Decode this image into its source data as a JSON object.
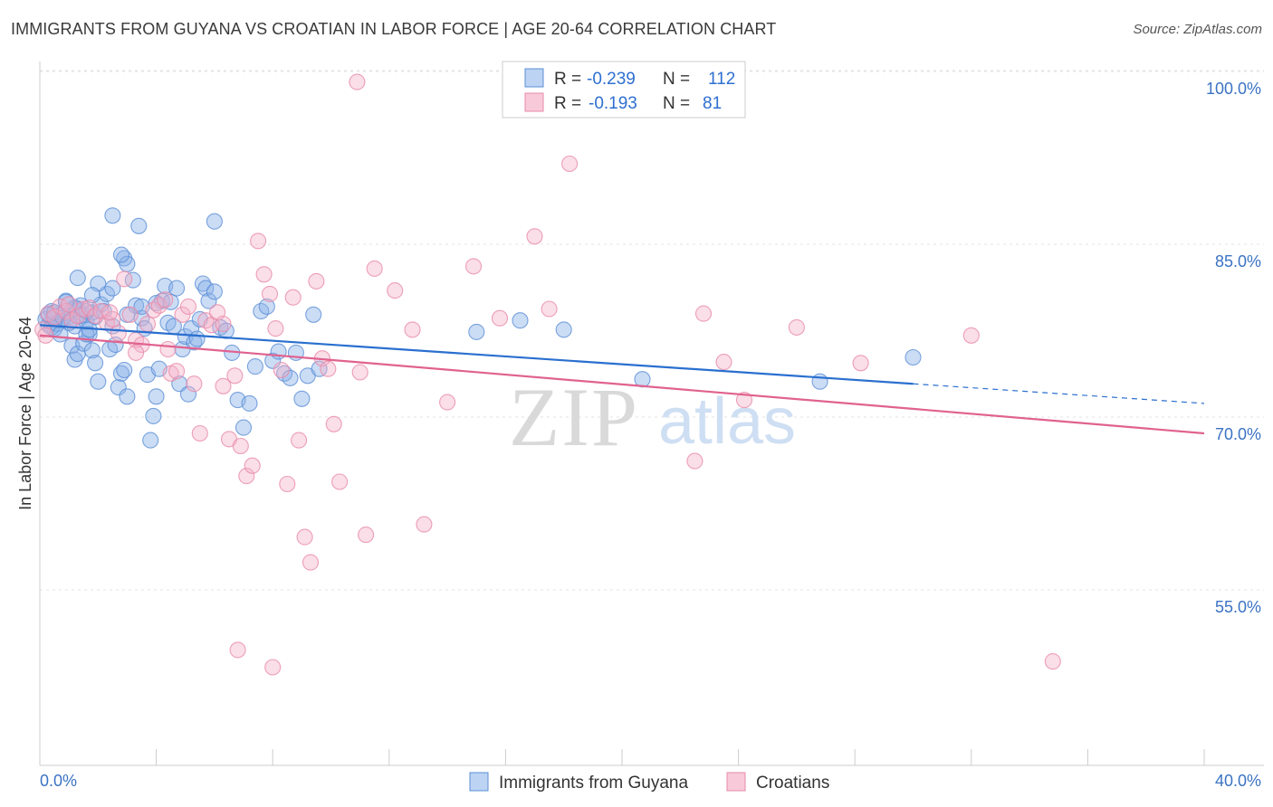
{
  "title": "IMMIGRANTS FROM GUYANA VS CROATIAN IN LABOR FORCE | AGE 20-64 CORRELATION CHART",
  "source": "Source: ZipAtlas.com",
  "watermark": {
    "zip": "ZIP",
    "atlas": "atlas"
  },
  "colors": {
    "blue": "#5b8fd6",
    "blue_line": "#2a6fcf",
    "pink": "#e98aa8",
    "pink_line": "#e0628f",
    "axis_text": "#3b73c4"
  },
  "legend": {
    "rows": [
      {
        "r_label": "R =",
        "r_value": "-0.239",
        "n_label": "N =",
        "n_value": "112"
      },
      {
        "r_label": "R =",
        "r_value": "-0.193",
        "n_label": "N =",
        "n_value": "81"
      }
    ]
  },
  "chart_data": {
    "type": "scatter",
    "title": "IMMIGRANTS FROM GUYANA VS CROATIAN IN LABOR FORCE | AGE 20-64 CORRELATION CHART",
    "xlabel": "",
    "ylabel": "In Labor Force | Age 20-64",
    "xlim": [
      0,
      40
    ],
    "ylim": [
      40,
      102
    ],
    "x_tick_labels": [
      "0.0%",
      "40.0%"
    ],
    "y_ticks": [
      100,
      85,
      70,
      55
    ],
    "y_tick_labels": [
      "100.0%",
      "85.0%",
      "70.0%",
      "55.0%"
    ],
    "grid": true,
    "legend_position": "top-center",
    "series": [
      {
        "name": "Immigrants from Guyana",
        "color": "#5b8fd6",
        "trend": {
          "x0": 0,
          "y0": 79.4,
          "x1": 30,
          "y1": 74.3,
          "x_dash_end": 40,
          "y_dash_end": 72.6
        },
        "points": [
          [
            0.2,
            79.9
          ],
          [
            0.3,
            79.4
          ],
          [
            0.4,
            80.6
          ],
          [
            0.5,
            79.1
          ],
          [
            0.6,
            80.2
          ],
          [
            0.7,
            79.8
          ],
          [
            0.8,
            80.4
          ],
          [
            0.9,
            81.5
          ],
          [
            1.0,
            80.1
          ],
          [
            1.1,
            80.7
          ],
          [
            1.2,
            79.3
          ],
          [
            1.3,
            80.8
          ],
          [
            1.4,
            81.1
          ],
          [
            1.5,
            80.3
          ],
          [
            1.6,
            79.7
          ],
          [
            1.7,
            78.6
          ],
          [
            1.8,
            80.5
          ],
          [
            1.9,
            80.1
          ],
          [
            0.3,
            80.3
          ],
          [
            0.5,
            80.5
          ],
          [
            0.6,
            79.5
          ],
          [
            0.8,
            80.0
          ],
          [
            1.0,
            79.6
          ],
          [
            1.2,
            80.9
          ],
          [
            1.4,
            80.2
          ],
          [
            1.6,
            80.6
          ],
          [
            0.9,
            81.4
          ],
          [
            1.1,
            77.6
          ],
          [
            1.2,
            76.4
          ],
          [
            1.3,
            76.9
          ],
          [
            1.5,
            77.8
          ],
          [
            1.6,
            78.6
          ],
          [
            1.7,
            79.0
          ],
          [
            1.8,
            77.2
          ],
          [
            1.9,
            76.1
          ],
          [
            2.0,
            74.5
          ],
          [
            2.1,
            81.2
          ],
          [
            2.2,
            80.6
          ],
          [
            2.3,
            82.1
          ],
          [
            2.4,
            77.3
          ],
          [
            2.5,
            79.3
          ],
          [
            2.6,
            77.7
          ],
          [
            2.7,
            74.0
          ],
          [
            2.8,
            75.2
          ],
          [
            2.9,
            75.5
          ],
          [
            3.0,
            73.2
          ],
          [
            2.5,
            88.9
          ],
          [
            2.9,
            85.2
          ],
          [
            3.0,
            84.7
          ],
          [
            3.2,
            83.3
          ],
          [
            3.3,
            81.1
          ],
          [
            3.5,
            80.0
          ],
          [
            3.6,
            79.1
          ],
          [
            3.7,
            75.1
          ],
          [
            3.8,
            69.4
          ],
          [
            3.9,
            71.5
          ],
          [
            4.0,
            73.2
          ],
          [
            4.1,
            75.6
          ],
          [
            4.2,
            81.5
          ],
          [
            4.3,
            82.8
          ],
          [
            4.4,
            79.6
          ],
          [
            4.5,
            81.4
          ],
          [
            4.6,
            79.3
          ],
          [
            4.7,
            82.6
          ],
          [
            4.8,
            74.3
          ],
          [
            4.9,
            77.3
          ],
          [
            5.0,
            78.4
          ],
          [
            5.1,
            73.4
          ],
          [
            5.2,
            79.1
          ],
          [
            5.3,
            77.9
          ],
          [
            5.4,
            78.2
          ],
          [
            5.5,
            79.9
          ],
          [
            5.6,
            83.0
          ],
          [
            5.7,
            82.6
          ],
          [
            5.8,
            81.5
          ],
          [
            6.0,
            82.3
          ],
          [
            6.2,
            79.2
          ],
          [
            6.4,
            78.9
          ],
          [
            6.6,
            77.0
          ],
          [
            6.8,
            72.9
          ],
          [
            7.0,
            70.5
          ],
          [
            7.2,
            72.6
          ],
          [
            7.4,
            75.8
          ],
          [
            7.6,
            80.6
          ],
          [
            7.8,
            81.0
          ],
          [
            8.0,
            76.3
          ],
          [
            8.2,
            77.1
          ],
          [
            8.4,
            75.2
          ],
          [
            8.6,
            74.8
          ],
          [
            8.8,
            77.0
          ],
          [
            9.0,
            73.0
          ],
          [
            9.2,
            75.0
          ],
          [
            9.4,
            80.3
          ],
          [
            9.6,
            75.6
          ],
          [
            6.0,
            88.4
          ],
          [
            3.4,
            88.0
          ],
          [
            2.8,
            85.5
          ],
          [
            2.0,
            83.0
          ],
          [
            2.5,
            82.6
          ],
          [
            3.0,
            80.3
          ],
          [
            1.3,
            83.5
          ],
          [
            1.8,
            82.0
          ],
          [
            4.0,
            81.3
          ],
          [
            3.5,
            81.0
          ],
          [
            15.0,
            78.8
          ],
          [
            16.5,
            79.8
          ],
          [
            18.0,
            79.0
          ],
          [
            20.7,
            74.7
          ],
          [
            26.8,
            74.5
          ],
          [
            30.0,
            76.6
          ],
          [
            0.4,
            79.2
          ],
          [
            0.7,
            78.6
          ]
        ]
      },
      {
        "name": "Croatians",
        "color": "#e98aa8",
        "trend": {
          "x0": 0,
          "y0": 78.5,
          "x1": 40,
          "y1": 70.0
        },
        "points": [
          [
            0.1,
            79.0
          ],
          [
            0.3,
            80.4
          ],
          [
            0.5,
            80.1
          ],
          [
            0.7,
            81.0
          ],
          [
            0.9,
            80.6
          ],
          [
            1.1,
            79.8
          ],
          [
            1.3,
            80.2
          ],
          [
            1.5,
            80.8
          ],
          [
            1.7,
            80.9
          ],
          [
            1.9,
            80.2
          ],
          [
            2.1,
            80.6
          ],
          [
            2.3,
            79.6
          ],
          [
            2.5,
            79.9
          ],
          [
            2.7,
            78.7
          ],
          [
            2.9,
            83.4
          ],
          [
            3.1,
            80.3
          ],
          [
            3.3,
            78.1
          ],
          [
            3.5,
            77.7
          ],
          [
            3.7,
            79.5
          ],
          [
            3.9,
            80.7
          ],
          [
            4.1,
            81.1
          ],
          [
            4.3,
            81.6
          ],
          [
            4.5,
            75.2
          ],
          [
            4.7,
            75.4
          ],
          [
            4.9,
            80.3
          ],
          [
            5.1,
            81.0
          ],
          [
            5.3,
            74.3
          ],
          [
            5.5,
            70.0
          ],
          [
            5.7,
            79.8
          ],
          [
            5.9,
            79.4
          ],
          [
            6.1,
            80.5
          ],
          [
            6.3,
            79.5
          ],
          [
            6.5,
            69.5
          ],
          [
            6.7,
            75.0
          ],
          [
            6.9,
            68.9
          ],
          [
            7.1,
            66.3
          ],
          [
            7.3,
            67.2
          ],
          [
            7.5,
            86.7
          ],
          [
            7.7,
            83.8
          ],
          [
            7.9,
            82.1
          ],
          [
            8.1,
            79.1
          ],
          [
            8.3,
            75.5
          ],
          [
            8.5,
            65.6
          ],
          [
            8.7,
            81.8
          ],
          [
            8.9,
            69.4
          ],
          [
            9.1,
            61.0
          ],
          [
            9.3,
            58.8
          ],
          [
            9.5,
            83.2
          ],
          [
            9.7,
            76.5
          ],
          [
            9.9,
            75.6
          ],
          [
            10.1,
            70.8
          ],
          [
            10.3,
            65.8
          ],
          [
            6.8,
            51.2
          ],
          [
            8.0,
            49.7
          ],
          [
            10.9,
            100.5
          ],
          [
            11.2,
            61.2
          ],
          [
            11.5,
            84.3
          ],
          [
            12.2,
            82.4
          ],
          [
            12.8,
            79.0
          ],
          [
            13.2,
            62.1
          ],
          [
            14.0,
            72.7
          ],
          [
            14.9,
            84.5
          ],
          [
            15.8,
            80.0
          ],
          [
            17.0,
            87.1
          ],
          [
            17.5,
            80.8
          ],
          [
            18.2,
            93.4
          ],
          [
            22.5,
            67.6
          ],
          [
            22.8,
            80.4
          ],
          [
            23.5,
            76.2
          ],
          [
            24.2,
            72.9
          ],
          [
            26.0,
            79.2
          ],
          [
            28.2,
            76.1
          ],
          [
            32.0,
            78.5
          ],
          [
            34.8,
            50.2
          ],
          [
            1.0,
            81.2
          ],
          [
            2.4,
            80.5
          ],
          [
            0.2,
            78.5
          ],
          [
            4.4,
            77.3
          ],
          [
            11.0,
            75.3
          ],
          [
            6.3,
            74.1
          ],
          [
            3.3,
            77.0
          ]
        ]
      }
    ]
  },
  "bottom_legend": {
    "items": [
      "Immigrants from Guyana",
      "Croatians"
    ]
  }
}
